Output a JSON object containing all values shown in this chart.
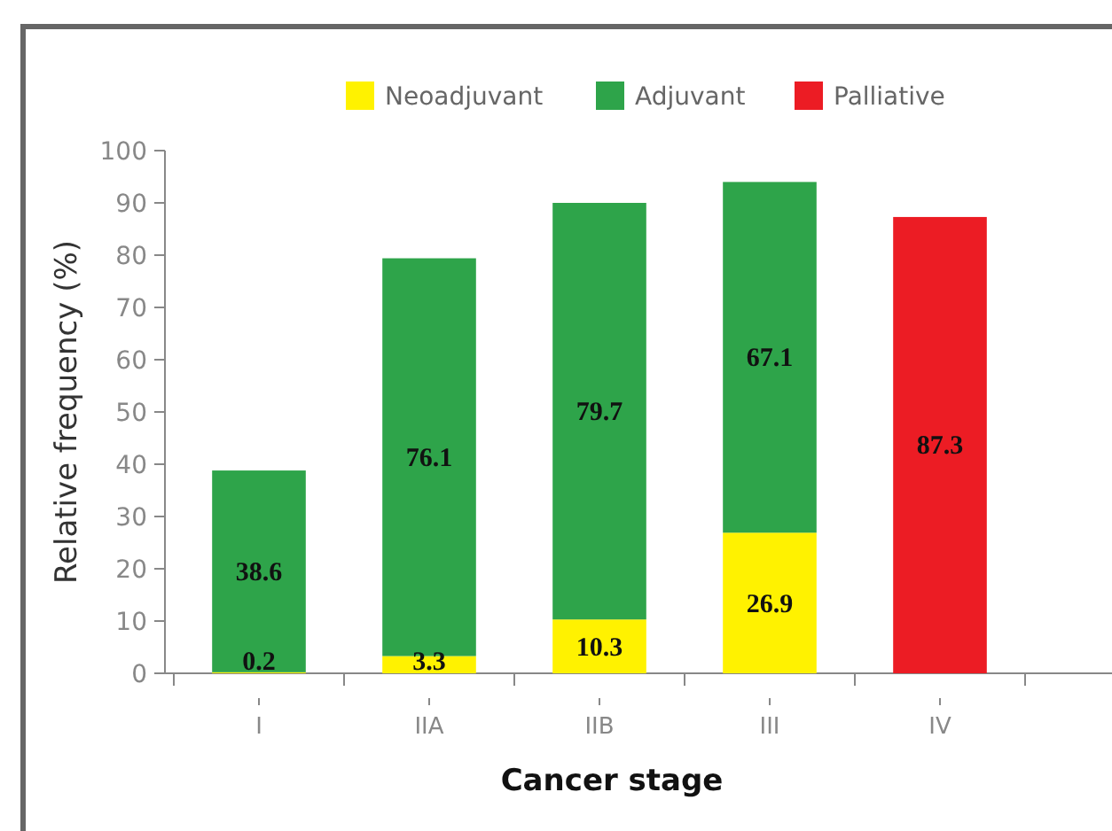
{
  "chart_data": {
    "type": "bar",
    "xlabel": "Cancer stage",
    "ylabel": "Relative frequency (%)",
    "categories": [
      "I",
      "IIA",
      "IIB",
      "III",
      "IV"
    ],
    "stacked": true,
    "data_labels": true,
    "legend": "top",
    "ylim": [
      0,
      100
    ],
    "yticks": [
      0,
      10,
      20,
      30,
      40,
      50,
      60,
      70,
      80,
      90,
      100
    ],
    "series": [
      {
        "name": "Neoadjuvant",
        "color": "#fff200",
        "values": [
          0.2,
          3.3,
          10.3,
          26.9,
          null
        ]
      },
      {
        "name": "Adjuvant",
        "color": "#2ea44a",
        "values": [
          38.6,
          76.1,
          79.7,
          67.1,
          null
        ]
      },
      {
        "name": "Palliative",
        "color": "#ec1c24",
        "values": [
          null,
          null,
          null,
          null,
          87.3
        ]
      }
    ]
  }
}
